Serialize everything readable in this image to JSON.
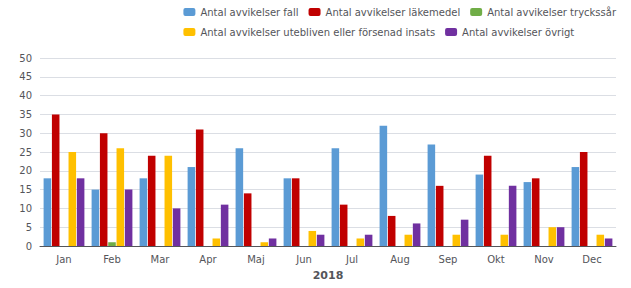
{
  "chart_data": {
    "type": "bar",
    "xlabel": "2018",
    "categories": [
      "Jan",
      "Feb",
      "Mar",
      "Apr",
      "Maj",
      "Jun",
      "Jul",
      "Aug",
      "Sep",
      "Okt",
      "Nov",
      "Dec"
    ],
    "series": [
      {
        "name": "Antal avvikelser fall",
        "color": "#5B9BD5",
        "values": [
          18,
          15,
          18,
          21,
          26,
          18,
          26,
          32,
          27,
          19,
          17,
          21
        ]
      },
      {
        "name": "Antal avvikelser läkemedel",
        "color": "#C00000",
        "values": [
          35,
          30,
          24,
          31,
          14,
          18,
          11,
          8,
          16,
          24,
          18,
          25
        ]
      },
      {
        "name": "Antal avvikelser tryckssår",
        "color": "#70AD47",
        "values": [
          0,
          1,
          0,
          0,
          0,
          0,
          0,
          0,
          0,
          0,
          0,
          0
        ]
      },
      {
        "name": "Antal avvikelser utebliven eller försenad insats",
        "color": "#FFC000",
        "values": [
          25,
          26,
          24,
          2,
          1,
          4,
          2,
          3,
          3,
          3,
          5,
          3
        ]
      },
      {
        "name": "Antal avvikelser övrigt",
        "color": "#7030A0",
        "values": [
          18,
          15,
          10,
          11,
          2,
          3,
          3,
          6,
          7,
          16,
          5,
          2
        ]
      }
    ],
    "ylim": [
      0,
      50
    ],
    "yticks": [
      0,
      5,
      10,
      15,
      20,
      25,
      30,
      35,
      40,
      45,
      50
    ],
    "grid": true,
    "legend": "upper right"
  }
}
